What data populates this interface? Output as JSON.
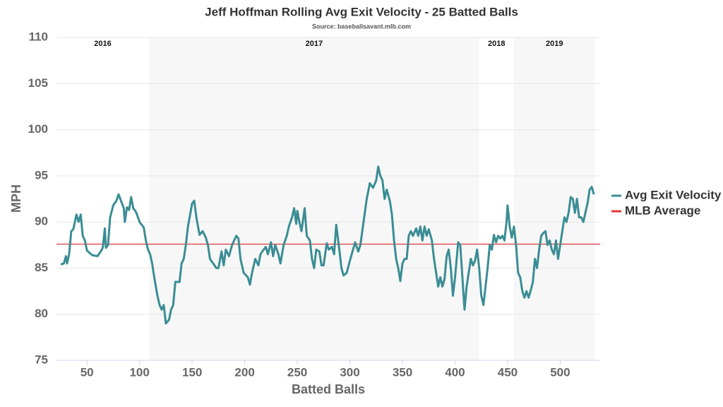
{
  "chart_data": {
    "type": "line",
    "title": "Jeff Hoffman Rolling Avg Exit Velocity - 25 Batted Balls",
    "subtitle": "Source: baseballsavant.mlb.com",
    "x_label": "Batted Balls",
    "y_label": "MPH",
    "xlim": [
      21,
      538
    ],
    "ylim": [
      75,
      110
    ],
    "xticks": [
      50,
      100,
      150,
      200,
      250,
      300,
      350,
      400,
      450,
      500
    ],
    "yticks": [
      75,
      80,
      85,
      90,
      95,
      100,
      105,
      110
    ],
    "grid": true,
    "legend": "right",
    "seasons": [
      {
        "label": "2016",
        "start": 21,
        "end": 109,
        "shaded": false
      },
      {
        "label": "2017",
        "start": 109,
        "end": 423,
        "shaded": true
      },
      {
        "label": "2018",
        "start": 423,
        "end": 456,
        "shaded": false
      },
      {
        "label": "2019",
        "start": 456,
        "end": 533,
        "shaded": true
      }
    ],
    "reference_line": {
      "name": "MLB Average",
      "value": 87.6,
      "color": "#e03a3a"
    },
    "x": [
      25,
      28,
      30,
      31,
      33,
      35,
      37,
      40,
      42,
      44,
      46,
      48,
      50,
      55,
      60,
      63,
      65,
      67,
      68,
      70,
      72,
      75,
      78,
      80,
      82,
      85,
      86,
      88,
      90,
      92,
      94,
      97,
      100,
      104,
      106,
      108,
      110,
      112,
      114,
      117,
      119,
      121,
      123,
      125,
      128,
      130,
      132,
      134,
      138,
      140,
      142,
      144,
      146,
      150,
      152,
      154,
      157,
      160,
      163,
      165,
      167,
      170,
      173,
      175,
      178,
      180,
      182,
      185,
      188,
      190,
      192,
      194,
      196,
      199,
      203,
      205,
      207,
      210,
      213,
      215,
      218,
      220,
      222,
      225,
      227,
      229,
      232,
      234,
      237,
      240,
      242,
      245,
      247,
      249,
      250,
      252,
      254,
      257,
      259,
      262,
      264,
      266,
      268,
      271,
      273,
      275,
      278,
      280,
      283,
      285,
      287,
      290,
      292,
      294,
      297,
      300,
      303,
      305,
      308,
      310,
      313,
      316,
      319,
      322,
      325,
      327,
      329,
      331,
      333,
      335,
      338,
      340,
      342,
      344,
      346,
      348,
      350,
      352,
      354,
      356,
      358,
      360,
      363,
      365,
      367,
      369,
      371,
      373,
      375,
      378,
      380,
      382,
      384,
      386,
      388,
      390,
      392,
      394,
      396,
      398,
      400,
      403,
      405,
      407,
      409,
      411,
      413,
      415,
      417,
      419,
      421,
      423,
      425,
      427,
      429,
      431,
      433,
      435,
      437,
      439,
      441,
      443,
      445,
      447,
      449,
      450,
      452,
      454,
      456,
      458,
      460,
      462,
      464,
      466,
      468,
      470,
      472,
      474,
      476,
      478,
      480,
      482,
      484,
      486,
      488,
      490,
      492,
      494,
      496,
      498,
      500,
      502,
      504,
      506,
      508,
      510,
      512,
      514,
      516,
      518,
      520,
      522,
      524,
      526,
      528,
      530,
      532
    ],
    "series": [
      {
        "name": "Avg Exit Velocity",
        "color": "#3a8d94",
        "values": [
          85.4,
          85.5,
          86.3,
          85.5,
          86.5,
          89.0,
          89.2,
          90.8,
          90.0,
          90.8,
          88.5,
          88.0,
          86.9,
          86.4,
          86.3,
          86.8,
          87.2,
          89.3,
          87.2,
          87.5,
          90.5,
          91.8,
          92.3,
          93.0,
          92.4,
          91.5,
          90.0,
          91.6,
          91.3,
          92.7,
          91.5,
          91.0,
          90.0,
          89.4,
          88.0,
          87.0,
          86.5,
          85.5,
          84.0,
          82.0,
          81.0,
          80.5,
          81.0,
          79.0,
          79.4,
          80.5,
          81.0,
          83.5,
          83.5,
          85.5,
          86.0,
          87.5,
          89.5,
          92.0,
          92.3,
          90.5,
          88.6,
          89.0,
          88.3,
          87.5,
          86.0,
          85.5,
          85.0,
          85.0,
          86.8,
          85.3,
          87.0,
          86.3,
          87.5,
          88.0,
          88.5,
          88.2,
          86.0,
          84.5,
          84.0,
          83.2,
          84.5,
          86.0,
          85.3,
          86.5,
          87.0,
          87.3,
          86.5,
          87.8,
          86.3,
          87.5,
          86.5,
          85.5,
          87.5,
          88.5,
          89.5,
          90.5,
          91.5,
          89.8,
          91.2,
          90.0,
          89.0,
          91.5,
          88.5,
          88.0,
          86.0,
          85.0,
          87.0,
          86.8,
          85.3,
          85.3,
          87.7,
          87.0,
          87.3,
          86.5,
          89.7,
          87.0,
          85.0,
          84.2,
          84.5,
          85.8,
          87.0,
          87.8,
          86.8,
          87.5,
          90.0,
          92.5,
          94.2,
          93.7,
          94.5,
          96.0,
          95.0,
          94.5,
          92.5,
          93.5,
          92.3,
          90.8,
          88.0,
          86.0,
          85.0,
          83.6,
          85.5,
          86.0,
          86.0,
          88.5,
          89.0,
          88.5,
          89.3,
          88.5,
          89.5,
          88.0,
          89.5,
          88.5,
          89.2,
          88.0,
          86.0,
          84.5,
          83.0,
          84.0,
          83.0,
          83.8,
          86.3,
          87.0,
          85.0,
          82.0,
          84.0,
          87.8,
          87.5,
          84.0,
          80.5,
          83.0,
          84.5,
          86.0,
          85.3,
          85.8,
          87.0,
          85.0,
          82.0,
          81.0,
          83.0,
          85.0,
          87.5,
          87.0,
          88.6,
          87.8,
          88.5,
          88.2,
          88.5,
          88.0,
          90.0,
          91.8,
          89.5,
          88.3,
          89.5,
          87.5,
          84.5,
          84.0,
          82.5,
          81.8,
          82.5,
          81.8,
          82.6,
          83.5,
          86.0,
          85.0,
          87.0,
          88.5,
          88.8,
          89.0,
          87.5,
          88.0,
          87.0,
          86.5,
          88.0,
          86.0,
          87.5,
          89.0,
          90.5,
          90.0,
          91.0,
          92.7,
          92.5,
          91.0,
          92.5,
          90.5,
          90.5,
          90.0,
          91.0,
          92.0,
          93.5,
          93.8,
          93.0
        ]
      }
    ]
  }
}
